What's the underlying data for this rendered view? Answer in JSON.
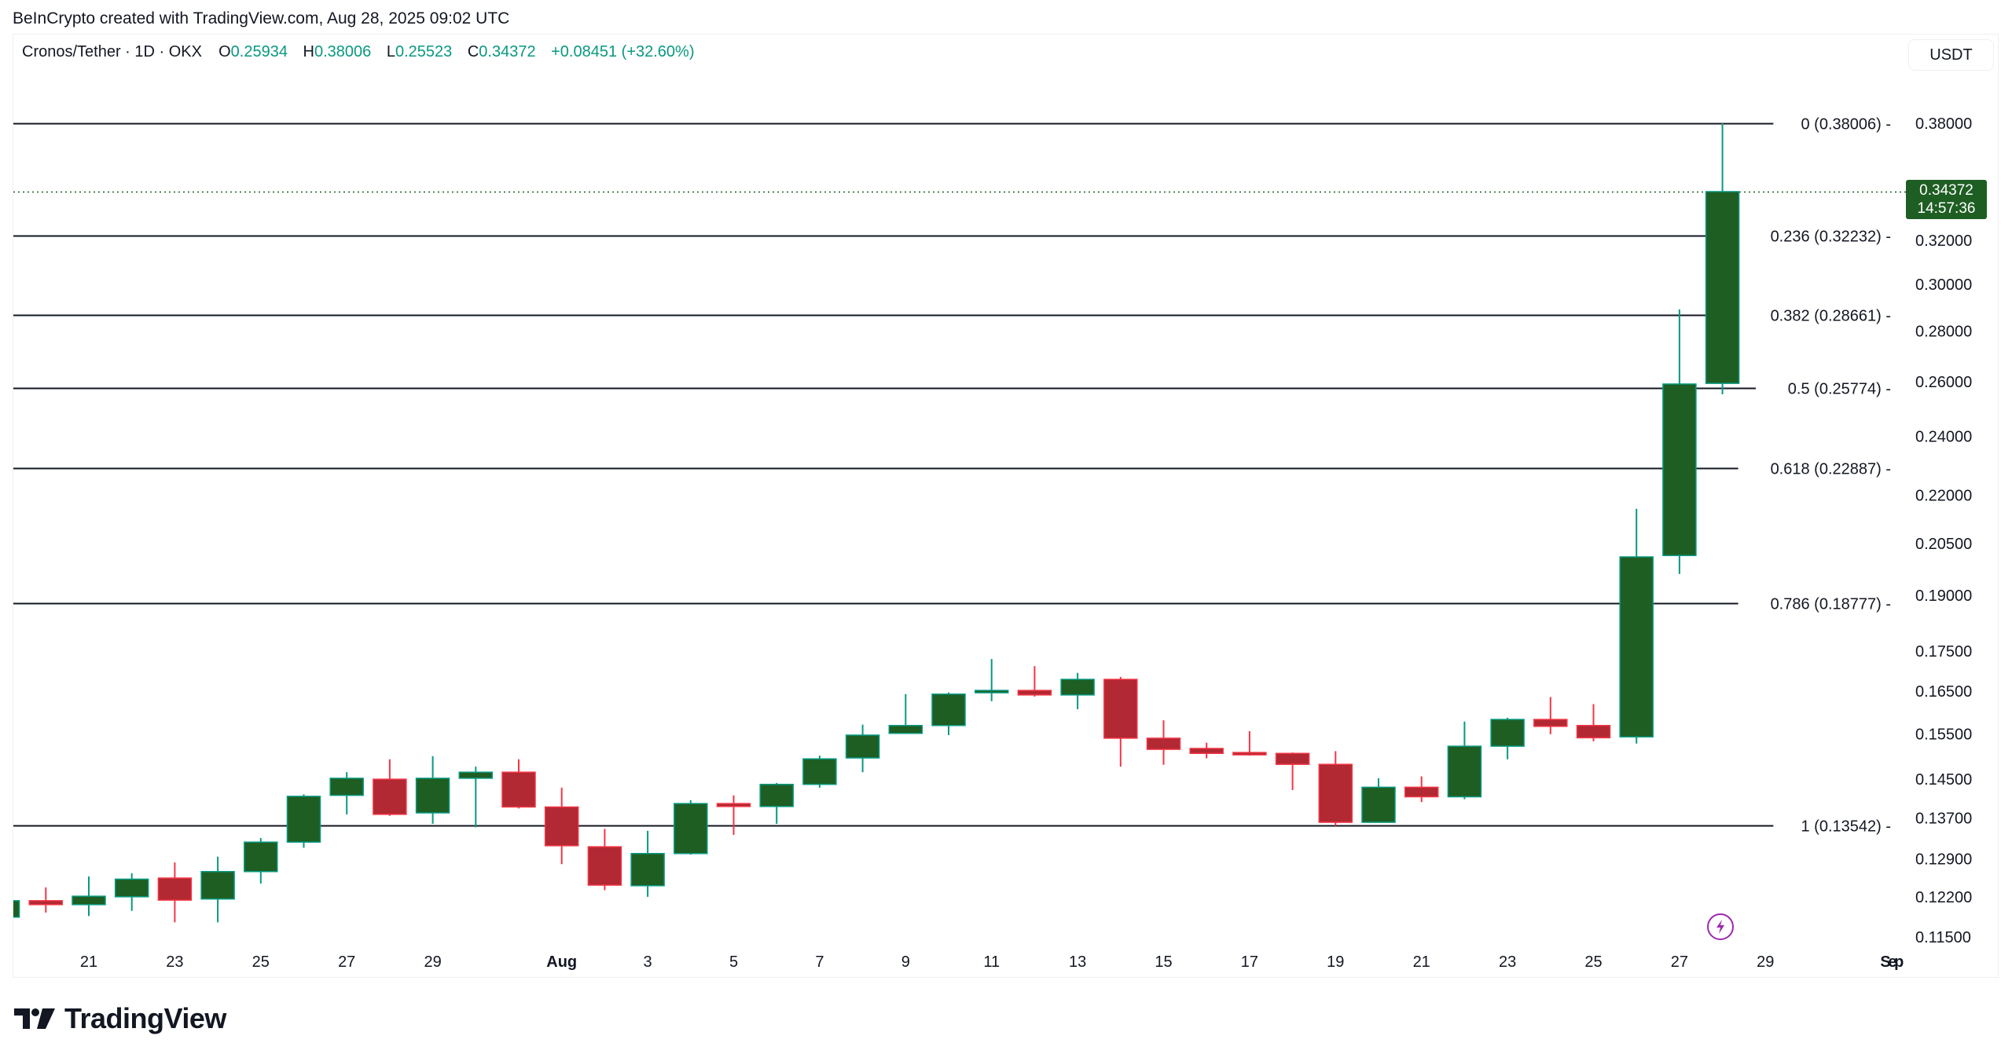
{
  "attribution": "BeInCrypto created with TradingView.com, Aug 28, 2025 09:02 UTC",
  "legend": {
    "symbol": "Cronos/Tether · 1D · OKX",
    "o_label": "O",
    "o_value": "0.25934",
    "h_label": "H",
    "h_value": "0.38006",
    "l_label": "L",
    "l_value": "0.25523",
    "c_label": "C",
    "c_value": "0.34372",
    "change": "+0.08451 (+32.60%)"
  },
  "currency_button": "USDT",
  "last_price_tag": {
    "price": "0.34372",
    "countdown": "14:57:36"
  },
  "logo_text": "TradingView",
  "colors": {
    "up_body": "#1e5e23",
    "up_border": "#089981",
    "down_body": "#b22833",
    "down_border": "#f23645",
    "fib_line": "#131722",
    "last_price_line": "#1e5e23",
    "event_icon": "#9c27b0"
  },
  "chart_data": {
    "type": "candlestick",
    "title": "Cronos/Tether · 1D · OKX",
    "xlabel": "",
    "ylabel": "USDT",
    "y_scale": "log",
    "ylim": [
      0.112,
      0.392
    ],
    "y_ticks": [
      "0.38000",
      "0.32000",
      "0.30000",
      "0.28000",
      "0.26000",
      "0.24000",
      "0.22000",
      "0.20500",
      "0.19000",
      "0.17500",
      "0.16500",
      "0.15500",
      "0.14500",
      "0.13700",
      "0.12900",
      "0.12200",
      "0.11500"
    ],
    "x_ticks": [
      {
        "label": "21",
        "day": 2
      },
      {
        "label": "23",
        "day": 4
      },
      {
        "label": "25",
        "day": 6
      },
      {
        "label": "27",
        "day": 8
      },
      {
        "label": "29",
        "day": 10
      },
      {
        "label": "Aug",
        "day": 13,
        "bold": true
      },
      {
        "label": "3",
        "day": 15
      },
      {
        "label": "5",
        "day": 17
      },
      {
        "label": "7",
        "day": 19
      },
      {
        "label": "9",
        "day": 21
      },
      {
        "label": "11",
        "day": 23
      },
      {
        "label": "13",
        "day": 25
      },
      {
        "label": "15",
        "day": 27
      },
      {
        "label": "17",
        "day": 29
      },
      {
        "label": "19",
        "day": 31
      },
      {
        "label": "21",
        "day": 33
      },
      {
        "label": "23",
        "day": 35
      },
      {
        "label": "25",
        "day": 37
      },
      {
        "label": "27",
        "day": 39
      },
      {
        "label": "29",
        "day": 41
      },
      {
        "label": "Sep",
        "day": 44,
        "bold": true
      }
    ],
    "candles": [
      {
        "date": "2025-07-19",
        "o": 0.1184,
        "h": 0.1215,
        "l": 0.118,
        "c": 0.1213
      },
      {
        "date": "2025-07-20",
        "o": 0.1213,
        "h": 0.1237,
        "l": 0.1192,
        "c": 0.1206
      },
      {
        "date": "2025-07-21",
        "o": 0.1206,
        "h": 0.1257,
        "l": 0.1186,
        "c": 0.1221
      },
      {
        "date": "2025-07-22",
        "o": 0.122,
        "h": 0.1263,
        "l": 0.1195,
        "c": 0.1252
      },
      {
        "date": "2025-07-23",
        "o": 0.1254,
        "h": 0.1283,
        "l": 0.1175,
        "c": 0.1214
      },
      {
        "date": "2025-07-24",
        "o": 0.1216,
        "h": 0.1294,
        "l": 0.1175,
        "c": 0.1266
      },
      {
        "date": "2025-07-25",
        "o": 0.1266,
        "h": 0.133,
        "l": 0.1244,
        "c": 0.1322
      },
      {
        "date": "2025-07-26",
        "o": 0.1322,
        "h": 0.1418,
        "l": 0.1311,
        "c": 0.1414
      },
      {
        "date": "2025-07-27",
        "o": 0.1416,
        "h": 0.1465,
        "l": 0.1377,
        "c": 0.1452
      },
      {
        "date": "2025-07-28",
        "o": 0.145,
        "h": 0.1493,
        "l": 0.1374,
        "c": 0.1377
      },
      {
        "date": "2025-07-29",
        "o": 0.138,
        "h": 0.15,
        "l": 0.1358,
        "c": 0.1452
      },
      {
        "date": "2025-07-30",
        "o": 0.1452,
        "h": 0.1477,
        "l": 0.1351,
        "c": 0.1465
      },
      {
        "date": "2025-07-31",
        "o": 0.1465,
        "h": 0.1493,
        "l": 0.1389,
        "c": 0.1392
      },
      {
        "date": "2025-08-01",
        "o": 0.1392,
        "h": 0.1432,
        "l": 0.128,
        "c": 0.1315
      },
      {
        "date": "2025-08-02",
        "o": 0.1313,
        "h": 0.1348,
        "l": 0.1232,
        "c": 0.1241
      },
      {
        "date": "2025-08-03",
        "o": 0.124,
        "h": 0.1344,
        "l": 0.122,
        "c": 0.13
      },
      {
        "date": "2025-08-04",
        "o": 0.13,
        "h": 0.1406,
        "l": 0.1298,
        "c": 0.1399
      },
      {
        "date": "2025-08-05",
        "o": 0.1399,
        "h": 0.1416,
        "l": 0.1336,
        "c": 0.1393
      },
      {
        "date": "2025-08-06",
        "o": 0.1393,
        "h": 0.1442,
        "l": 0.1358,
        "c": 0.1439
      },
      {
        "date": "2025-08-07",
        "o": 0.1439,
        "h": 0.1501,
        "l": 0.1432,
        "c": 0.1494
      },
      {
        "date": "2025-08-08",
        "o": 0.1496,
        "h": 0.1571,
        "l": 0.1465,
        "c": 0.1547
      },
      {
        "date": "2025-08-09",
        "o": 0.1551,
        "h": 0.1643,
        "l": 0.1551,
        "c": 0.1569
      },
      {
        "date": "2025-08-10",
        "o": 0.1569,
        "h": 0.1647,
        "l": 0.1547,
        "c": 0.1643
      },
      {
        "date": "2025-08-11",
        "o": 0.1647,
        "h": 0.173,
        "l": 0.1626,
        "c": 0.1652
      },
      {
        "date": "2025-08-12",
        "o": 0.1652,
        "h": 0.1712,
        "l": 0.1637,
        "c": 0.1641
      },
      {
        "date": "2025-08-13",
        "o": 0.1641,
        "h": 0.1695,
        "l": 0.1607,
        "c": 0.1679
      },
      {
        "date": "2025-08-14",
        "o": 0.1679,
        "h": 0.1685,
        "l": 0.1477,
        "c": 0.154
      },
      {
        "date": "2025-08-15",
        "o": 0.154,
        "h": 0.1581,
        "l": 0.1481,
        "c": 0.1515
      },
      {
        "date": "2025-08-16",
        "o": 0.1517,
        "h": 0.153,
        "l": 0.1495,
        "c": 0.1506
      },
      {
        "date": "2025-08-17",
        "o": 0.1508,
        "h": 0.1556,
        "l": 0.1501,
        "c": 0.1506
      },
      {
        "date": "2025-08-18",
        "o": 0.1506,
        "h": 0.1508,
        "l": 0.1427,
        "c": 0.1482
      },
      {
        "date": "2025-08-19",
        "o": 0.1482,
        "h": 0.1511,
        "l": 0.1354,
        "c": 0.1361
      },
      {
        "date": "2025-08-20",
        "o": 0.1361,
        "h": 0.1452,
        "l": 0.1361,
        "c": 0.1433
      },
      {
        "date": "2025-08-21",
        "o": 0.1433,
        "h": 0.1456,
        "l": 0.1402,
        "c": 0.1413
      },
      {
        "date": "2025-08-22",
        "o": 0.1413,
        "h": 0.1578,
        "l": 0.1408,
        "c": 0.1522
      },
      {
        "date": "2025-08-23",
        "o": 0.1522,
        "h": 0.1587,
        "l": 0.1493,
        "c": 0.1583
      },
      {
        "date": "2025-08-24",
        "o": 0.1583,
        "h": 0.1636,
        "l": 0.1549,
        "c": 0.1567
      },
      {
        "date": "2025-08-25",
        "o": 0.1569,
        "h": 0.1619,
        "l": 0.1533,
        "c": 0.1541
      },
      {
        "date": "2025-08-26",
        "o": 0.1543,
        "h": 0.2157,
        "l": 0.1528,
        "c": 0.201
      },
      {
        "date": "2025-08-27",
        "o": 0.2014,
        "h": 0.2891,
        "l": 0.196,
        "c": 0.2591
      },
      {
        "date": "2025-08-28",
        "o": 0.25934,
        "h": 0.38006,
        "l": 0.25523,
        "c": 0.34372
      }
    ],
    "fibonacci": [
      {
        "level": "0",
        "price": 0.38006,
        "label": "0 (0.38006)"
      },
      {
        "level": "0.236",
        "price": 0.32232,
        "label": "0.236 (0.32232)"
      },
      {
        "level": "0.382",
        "price": 0.28661,
        "label": "0.382 (0.28661)"
      },
      {
        "level": "0.5",
        "price": 0.25774,
        "label": "0.5 (0.25774)"
      },
      {
        "level": "0.618",
        "price": 0.22887,
        "label": "0.618 (0.22887)"
      },
      {
        "level": "0.786",
        "price": 0.18777,
        "label": "0.786 (0.18777)"
      },
      {
        "level": "1",
        "price": 0.13542,
        "label": "1 (0.13542)"
      }
    ],
    "last_price": 0.34372,
    "grid": false,
    "legend_position": "top-left"
  }
}
